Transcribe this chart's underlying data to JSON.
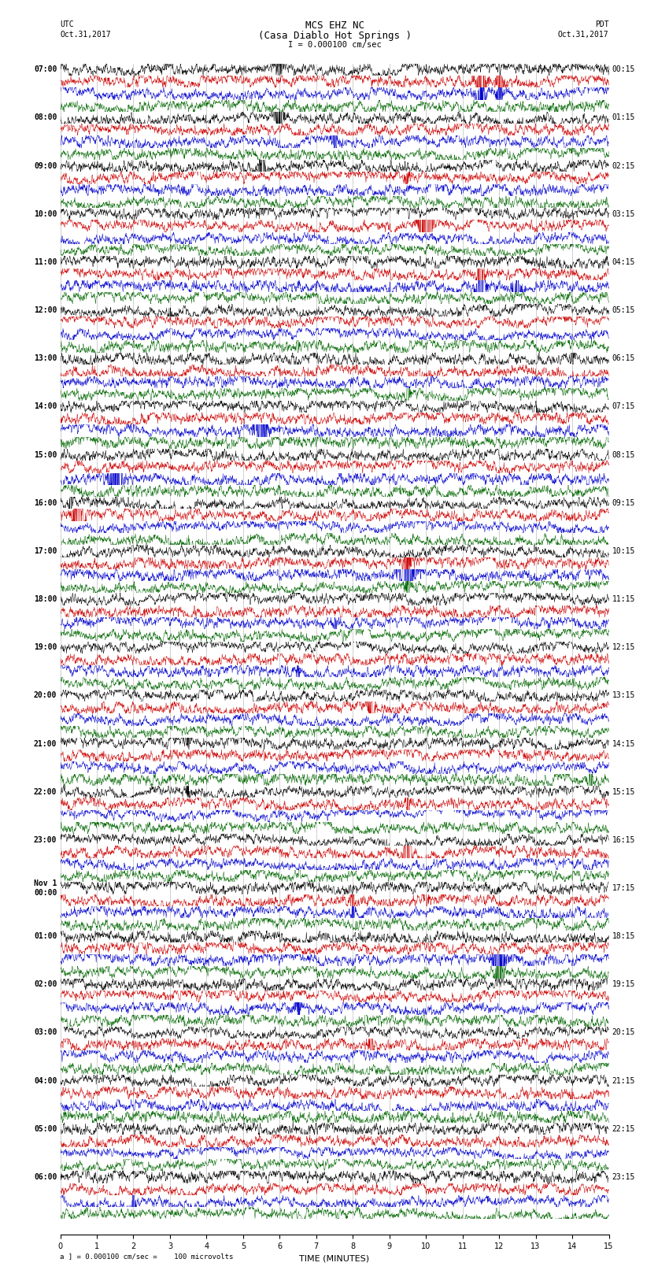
{
  "title_line1": "MCS EHZ NC",
  "title_line2": "(Casa Diablo Hot Springs )",
  "scale_label": "I = 0.000100 cm/sec",
  "bottom_label": "a ] = 0.000100 cm/sec =    100 microvolts",
  "xlabel": "TIME (MINUTES)",
  "utc_label": "UTC",
  "utc_date": "Oct.31,2017",
  "pdt_label": "PDT",
  "pdt_date": "Oct.31,2017",
  "left_times": [
    "07:00",
    "08:00",
    "09:00",
    "10:00",
    "11:00",
    "12:00",
    "13:00",
    "14:00",
    "15:00",
    "16:00",
    "17:00",
    "18:00",
    "19:00",
    "20:00",
    "21:00",
    "22:00",
    "23:00",
    "Nov 1\n00:00",
    "01:00",
    "02:00",
    "03:00",
    "04:00",
    "05:00",
    "06:00"
  ],
  "right_times": [
    "00:15",
    "01:15",
    "02:15",
    "03:15",
    "04:15",
    "05:15",
    "06:15",
    "07:15",
    "08:15",
    "09:15",
    "10:15",
    "11:15",
    "12:15",
    "13:15",
    "14:15",
    "15:15",
    "16:15",
    "17:15",
    "18:15",
    "19:15",
    "20:15",
    "21:15",
    "22:15",
    "23:15"
  ],
  "n_rows": 24,
  "traces_per_row": 4,
  "trace_colors": [
    "#000000",
    "#cc0000",
    "#0000cc",
    "#006600"
  ],
  "background_color": "#ffffff",
  "noise_amplitude": 0.3,
  "signal_amplitude": 0.55,
  "xlim": [
    0,
    15
  ],
  "grid_color": "#aaaaaa",
  "tick_fontsize": 7,
  "label_fontsize": 8,
  "title_fontsize": 9,
  "fig_width": 8.5,
  "fig_height": 16.13,
  "dpi": 100
}
